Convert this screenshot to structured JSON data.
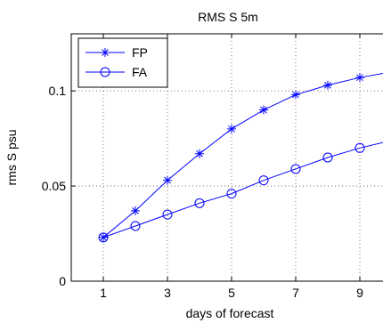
{
  "chart_data": {
    "type": "line",
    "title": "RMS S 5m",
    "xlabel": "days of forecast",
    "ylabel": "rms S psu",
    "xlim": [
      0,
      10
    ],
    "ylim": [
      0,
      0.13
    ],
    "xticks": [
      1,
      3,
      5,
      7,
      9
    ],
    "yticks": [
      0,
      0.05,
      0.1
    ],
    "xtick_labels": [
      "1",
      "3",
      "5",
      "7",
      "9"
    ],
    "ytick_labels": [
      "0",
      "0.05",
      "0.1"
    ],
    "grid": "dotted",
    "legend_position": "top-left",
    "series": [
      {
        "name": "FP",
        "marker": "asterisk",
        "color": "#0000ff",
        "x": [
          1,
          2,
          3,
          4,
          5,
          6,
          7,
          8,
          9,
          10
        ],
        "values": [
          0.023,
          0.037,
          0.053,
          0.067,
          0.08,
          0.09,
          0.098,
          0.103,
          0.107,
          0.11
        ]
      },
      {
        "name": "FA",
        "marker": "circle",
        "color": "#0000ff",
        "x": [
          1,
          2,
          3,
          4,
          5,
          6,
          7,
          8,
          9,
          10
        ],
        "values": [
          0.023,
          0.029,
          0.035,
          0.041,
          0.046,
          0.053,
          0.059,
          0.065,
          0.07,
          0.074
        ]
      }
    ]
  }
}
